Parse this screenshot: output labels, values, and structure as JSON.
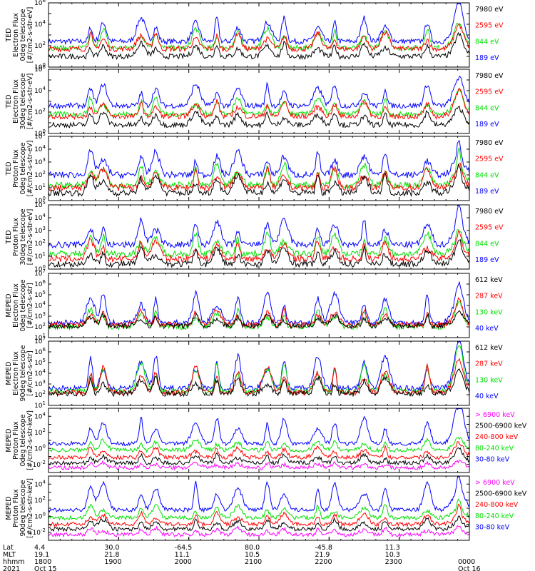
{
  "colors": {
    "blue": "#0000ff",
    "red": "#ff0000",
    "green": "#00e000",
    "black": "#000000",
    "magenta": "#ff00ff"
  },
  "chart_data": {
    "type": "line",
    "x_range": [
      "1800",
      "0000"
    ],
    "panels": [
      {
        "ylabel": [
          "TED",
          "Electron Flux",
          "0deg telescope",
          "[#/cm2-s-str-eV]"
        ],
        "ylim_exp": [
          0,
          6
        ],
        "tick_exps": [
          0,
          2,
          4,
          6
        ],
        "legend": [
          {
            "label": "7980 eV",
            "color": "black"
          },
          {
            "label": "2595 eV",
            "color": "red"
          },
          {
            "label": "844 eV",
            "color": "green"
          },
          {
            "label": "189 eV",
            "color": "blue"
          }
        ],
        "series": [
          {
            "color": "blue",
            "base": 2.4,
            "amp": 2.2
          },
          {
            "color": "green",
            "base": 1.8,
            "amp": 1.8
          },
          {
            "color": "red",
            "base": 1.7,
            "amp": 1.5
          },
          {
            "color": "black",
            "base": 1.0,
            "amp": 1.2
          }
        ]
      },
      {
        "ylabel": [
          "TED",
          "Electron Flux",
          "30deg telescope",
          "[#/cm2-s-str-eV]"
        ],
        "ylim_exp": [
          0,
          6
        ],
        "tick_exps": [
          0,
          2,
          4,
          6
        ],
        "legend": [
          {
            "label": "7980 eV",
            "color": "black"
          },
          {
            "label": "2595 eV",
            "color": "red"
          },
          {
            "label": "844 eV",
            "color": "green"
          },
          {
            "label": "189 eV",
            "color": "blue"
          }
        ],
        "series": [
          {
            "color": "blue",
            "base": 2.6,
            "amp": 2.0
          },
          {
            "color": "green",
            "base": 1.8,
            "amp": 1.5
          },
          {
            "color": "red",
            "base": 1.6,
            "amp": 1.4
          },
          {
            "color": "black",
            "base": 0.8,
            "amp": 1.2
          }
        ]
      },
      {
        "ylabel": [
          "TED",
          "Proton Flux",
          "0deg telescope",
          "[#/cm2-s-str-eV]"
        ],
        "ylim_exp": [
          0,
          5
        ],
        "tick_exps": [
          0,
          1,
          2,
          3,
          4,
          5
        ],
        "legend": [
          {
            "label": "7980 eV",
            "color": "black"
          },
          {
            "label": "2595 eV",
            "color": "red"
          },
          {
            "label": "844 eV",
            "color": "green"
          },
          {
            "label": "189 eV",
            "color": "blue"
          }
        ],
        "series": [
          {
            "color": "blue",
            "base": 2.0,
            "amp": 1.8
          },
          {
            "color": "green",
            "base": 1.2,
            "amp": 1.6
          },
          {
            "color": "red",
            "base": 1.0,
            "amp": 1.5
          },
          {
            "color": "black",
            "base": 0.6,
            "amp": 1.4
          }
        ]
      },
      {
        "ylabel": [
          "TED",
          "Proton Flux",
          "30deg telescope",
          "[#/cm2-s-str-eV]"
        ],
        "ylim_exp": [
          0,
          5
        ],
        "tick_exps": [
          0,
          1,
          2,
          3,
          4,
          5
        ],
        "legend": [
          {
            "label": "7980 eV",
            "color": "black"
          },
          {
            "label": "2595 eV",
            "color": "red"
          },
          {
            "label": "844 eV",
            "color": "green"
          },
          {
            "label": "189 eV",
            "color": "blue"
          }
        ],
        "series": [
          {
            "color": "blue",
            "base": 1.9,
            "amp": 1.9
          },
          {
            "color": "green",
            "base": 1.2,
            "amp": 1.5
          },
          {
            "color": "red",
            "base": 0.8,
            "amp": 1.4
          },
          {
            "color": "black",
            "base": 0.4,
            "amp": 1.2
          }
        ]
      },
      {
        "ylabel": [
          "MEPED",
          "Electron Flux",
          "0deg telescope",
          "[#/cm2-s-str]"
        ],
        "ylim_exp": [
          1,
          7
        ],
        "tick_exps": [
          1,
          2,
          3,
          4,
          5,
          6,
          7
        ],
        "legend": [
          {
            "label": "612 keV",
            "color": "black"
          },
          {
            "label": "287 keV",
            "color": "red"
          },
          {
            "label": "130 keV",
            "color": "green"
          },
          {
            "label": "40 keV",
            "color": "blue"
          }
        ],
        "series": [
          {
            "color": "blue",
            "base": 2.4,
            "amp": 2.8
          },
          {
            "color": "green",
            "base": 2.0,
            "amp": 1.6
          },
          {
            "color": "red",
            "base": 2.2,
            "amp": 1.4
          },
          {
            "color": "black",
            "base": 2.1,
            "amp": 1.0
          }
        ]
      },
      {
        "ylabel": [
          "MEPED",
          "Electron Flux",
          "90deg telescope",
          "[#/cm2-s-str]"
        ],
        "ylim_exp": [
          1,
          7
        ],
        "tick_exps": [
          1,
          2,
          3,
          4,
          5,
          6,
          7
        ],
        "legend": [
          {
            "label": "612 keV",
            "color": "black"
          },
          {
            "label": "287 keV",
            "color": "red"
          },
          {
            "label": "130 keV",
            "color": "green"
          },
          {
            "label": "40 keV",
            "color": "blue"
          }
        ],
        "series": [
          {
            "color": "blue",
            "base": 2.6,
            "amp": 3.0
          },
          {
            "color": "green",
            "base": 2.3,
            "amp": 2.6
          },
          {
            "color": "red",
            "base": 2.2,
            "amp": 2.4
          },
          {
            "color": "black",
            "base": 2.1,
            "amp": 1.5
          }
        ]
      },
      {
        "ylabel": [
          "MEPED",
          "Proton Flux",
          "0deg telescope",
          "[#/cm2-s-str-keV]"
        ],
        "ylim_exp": [
          -3,
          5
        ],
        "tick_exps": [
          -2,
          0,
          2,
          4
        ],
        "legend": [
          {
            "label": "> 6900 keV",
            "color": "magenta"
          },
          {
            "label": "2500-6900 keV",
            "color": "black"
          },
          {
            "label": "240-800 keV",
            "color": "red"
          },
          {
            "label": "80-240 keV",
            "color": "green"
          },
          {
            "label": "30-80 keV",
            "color": "blue"
          }
        ],
        "series": [
          {
            "color": "blue",
            "base": 0.6,
            "amp": 3.2
          },
          {
            "color": "green",
            "base": -0.2,
            "amp": 1.2
          },
          {
            "color": "red",
            "base": -1.1,
            "amp": 1.2
          },
          {
            "color": "black",
            "base": -1.8,
            "amp": 1.0
          },
          {
            "color": "magenta",
            "base": -2.4,
            "amp": 0.6
          }
        ]
      },
      {
        "ylabel": [
          "MEPED",
          "Proton Flux",
          "90deg telescope",
          "[#/cm2-s-str-keV]"
        ],
        "ylim_exp": [
          -3,
          5
        ],
        "tick_exps": [
          -2,
          0,
          2,
          4
        ],
        "legend": [
          {
            "label": "> 6900 keV",
            "color": "magenta"
          },
          {
            "label": "2500-6900 keV",
            "color": "black"
          },
          {
            "label": "240-800 keV",
            "color": "red"
          },
          {
            "label": "80-240 keV",
            "color": "green"
          },
          {
            "label": "30-80 keV",
            "color": "blue"
          }
        ],
        "series": [
          {
            "color": "blue",
            "base": 0.8,
            "amp": 3.4
          },
          {
            "color": "green",
            "base": -0.2,
            "amp": 1.5
          },
          {
            "color": "red",
            "base": -1.0,
            "amp": 1.4
          },
          {
            "color": "black",
            "base": -1.6,
            "amp": 1.2
          },
          {
            "color": "magenta",
            "base": -2.3,
            "amp": 0.8
          }
        ]
      }
    ],
    "bottom_axis": {
      "row_labels": [
        "Lat",
        "MLT",
        "hhmm",
        "2021"
      ],
      "ticks": [
        {
          "lat": "4.4",
          "mlt": "19.1",
          "hhmm": "1800",
          "date": "Oct 15"
        },
        {
          "lat": "30.0",
          "mlt": "21.8",
          "hhmm": "1900",
          "date": ""
        },
        {
          "lat": "-64.5",
          "mlt": "11.1",
          "hhmm": "2000",
          "date": ""
        },
        {
          "lat": "80.0",
          "mlt": "10.5",
          "hhmm": "2100",
          "date": ""
        },
        {
          "lat": "-45.8",
          "mlt": "21.9",
          "hhmm": "2200",
          "date": ""
        },
        {
          "lat": "11.3",
          "mlt": "10.3",
          "hhmm": "2300",
          "date": ""
        },
        {
          "lat": "",
          "mlt": "",
          "hhmm": "0000",
          "date": "Oct 16"
        }
      ]
    }
  }
}
